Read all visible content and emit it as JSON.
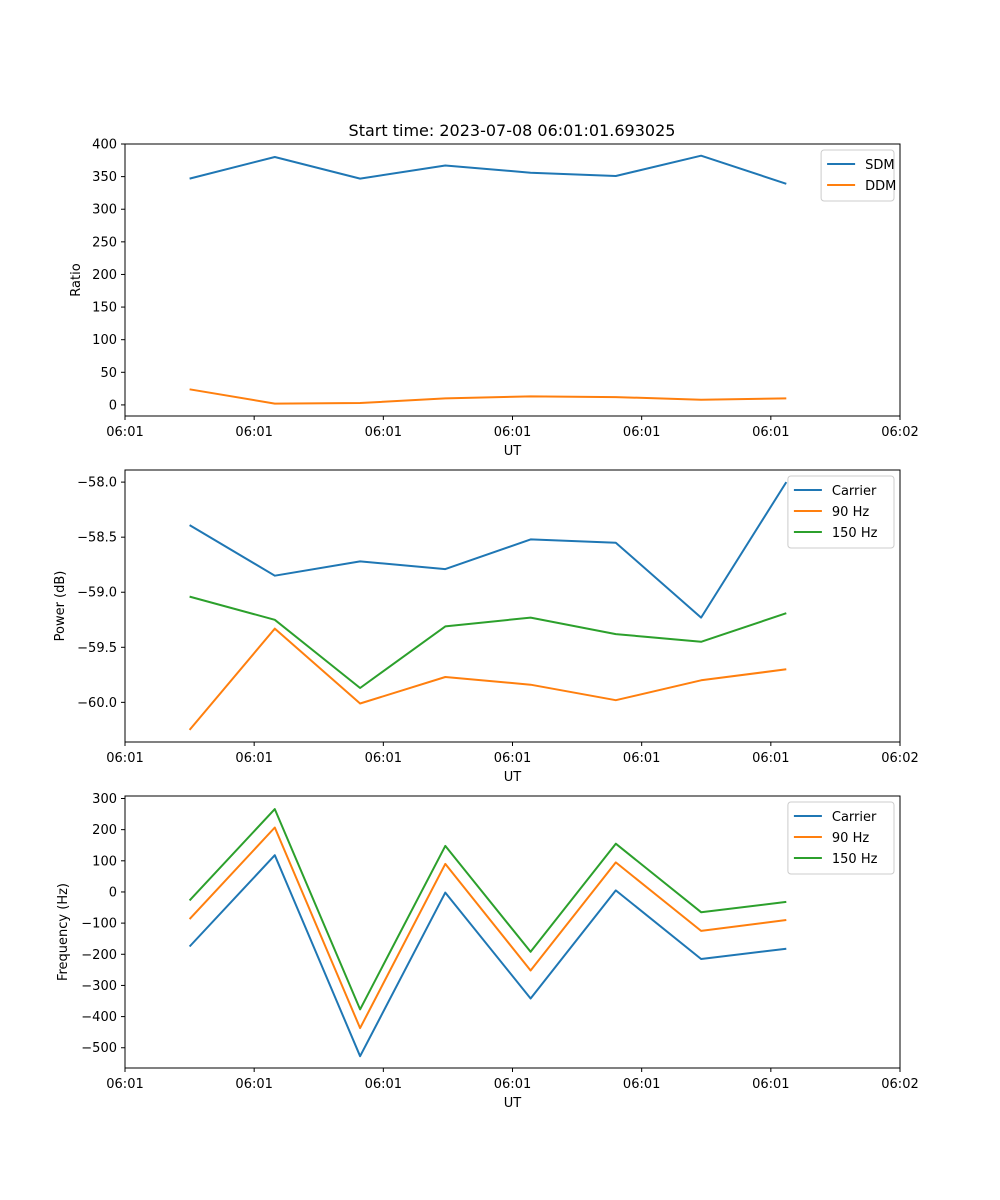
{
  "figure_title": "Start time: 2023-07-08 06:01:01.693025",
  "colors": {
    "blue": "#1f77b4",
    "orange": "#ff7f0e",
    "green": "#2ca02c"
  },
  "chart_data": [
    {
      "type": "line",
      "title": "Start time: 2023-07-08 06:01:01.693025",
      "xlabel": "UT",
      "ylabel": "Ratio",
      "x_tick_labels": [
        "06:01",
        "06:01",
        "06:01",
        "06:01",
        "06:01",
        "06:01",
        "06:02"
      ],
      "xlim": [
        0,
        6
      ],
      "x": [
        0.5,
        1.16,
        1.82,
        2.48,
        3.14,
        3.8,
        4.46,
        5.12
      ],
      "ylim": [
        -17,
        400
      ],
      "y_ticks": [
        0,
        50,
        100,
        150,
        200,
        250,
        300,
        350,
        400
      ],
      "legend_position": "top-right",
      "series": [
        {
          "name": "SDM",
          "color": "#1f77b4",
          "values": [
            347,
            380,
            347,
            367,
            356,
            351,
            382,
            339
          ]
        },
        {
          "name": "DDM",
          "color": "#ff7f0e",
          "values": [
            24,
            2,
            3,
            10,
            13,
            12,
            8,
            10
          ]
        }
      ]
    },
    {
      "type": "line",
      "xlabel": "UT",
      "ylabel": "Power (dB)",
      "x_tick_labels": [
        "06:01",
        "06:01",
        "06:01",
        "06:01",
        "06:01",
        "06:01",
        "06:02"
      ],
      "xlim": [
        0,
        6
      ],
      "x": [
        0.5,
        1.16,
        1.82,
        2.48,
        3.14,
        3.8,
        4.46,
        5.12
      ],
      "ylim": [
        -60.36,
        -57.89
      ],
      "y_ticks": [
        -60.0,
        -59.5,
        -59.0,
        -58.5,
        -58.0
      ],
      "y_tick_labels": [
        "−60.0",
        "−59.5",
        "−59.0",
        "−58.5",
        "−58.0"
      ],
      "legend_position": "top-right",
      "series": [
        {
          "name": "Carrier",
          "color": "#1f77b4",
          "values": [
            -58.39,
            -58.85,
            -58.72,
            -58.79,
            -58.52,
            -58.55,
            -59.23,
            -58.0
          ]
        },
        {
          "name": "90 Hz",
          "color": "#ff7f0e",
          "values": [
            -60.25,
            -59.33,
            -60.01,
            -59.77,
            -59.84,
            -59.98,
            -59.8,
            -59.7
          ]
        },
        {
          "name": "150 Hz",
          "color": "#2ca02c",
          "values": [
            -59.04,
            -59.25,
            -59.87,
            -59.31,
            -59.23,
            -59.38,
            -59.45,
            -59.19
          ]
        }
      ]
    },
    {
      "type": "line",
      "xlabel": "UT",
      "ylabel": "Frequency (Hz)",
      "x_tick_labels": [
        "06:01",
        "06:01",
        "06:01",
        "06:01",
        "06:01",
        "06:01",
        "06:02"
      ],
      "xlim": [
        0,
        6
      ],
      "x": [
        0.5,
        1.16,
        1.82,
        2.48,
        3.14,
        3.8,
        4.46,
        5.12
      ],
      "ylim": [
        -565,
        308
      ],
      "y_ticks": [
        -500,
        -400,
        -300,
        -200,
        -100,
        0,
        100,
        200,
        300
      ],
      "y_tick_labels": [
        "−500",
        "−400",
        "−300",
        "−200",
        "−100",
        "0",
        "100",
        "200",
        "300"
      ],
      "legend_position": "top-right",
      "series": [
        {
          "name": "Carrier",
          "color": "#1f77b4",
          "values": [
            -175,
            118,
            -527,
            -2,
            -342,
            5,
            -215,
            -182
          ]
        },
        {
          "name": "90 Hz",
          "color": "#ff7f0e",
          "values": [
            -87,
            207,
            -437,
            90,
            -252,
            95,
            -125,
            -90
          ]
        },
        {
          "name": "150 Hz",
          "color": "#2ca02c",
          "values": [
            -27,
            266,
            -377,
            148,
            -192,
            155,
            -65,
            -32
          ]
        }
      ]
    }
  ]
}
